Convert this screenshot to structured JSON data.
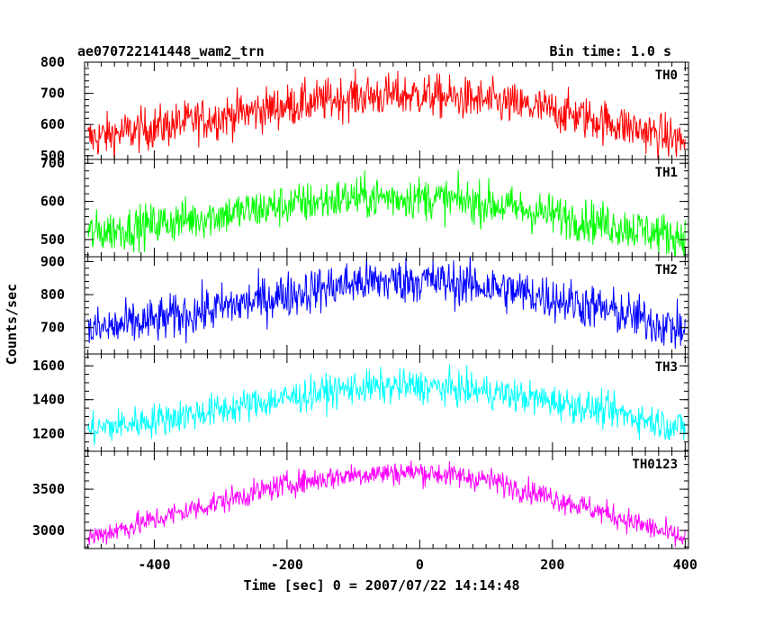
{
  "chart_data": {
    "type": "line",
    "title_left": "ae070722141448_wam2_trn",
    "title_right": "Bin time: 1.0 s",
    "xlabel": "Time [sec] 0 = 2007/07/22 14:14:48",
    "ylabel": "Counts/sec",
    "xlim": [
      -505,
      405
    ],
    "x_ticks": [
      "-400",
      "-200",
      "0",
      "200",
      "400"
    ],
    "x_tick_values": [
      -400,
      -200,
      0,
      200,
      400
    ],
    "bin_time_s": 1.0,
    "panels": [
      {
        "name": "TH0",
        "color": "#ff0000",
        "ylim": [
          488,
          800
        ],
        "y_ticks": [
          "500",
          "600",
          "700",
          "800"
        ],
        "y_tick_values": [
          500,
          600,
          700,
          800
        ],
        "trend_x": [
          -500,
          -400,
          -300,
          -200,
          -100,
          0,
          100,
          200,
          300,
          400
        ],
        "trend_y": [
          555,
          590,
          625,
          660,
          690,
          695,
          675,
          645,
          600,
          545
        ],
        "noise": 35
      },
      {
        "name": "TH1",
        "color": "#00ff00",
        "ylim": [
          455,
          710
        ],
        "y_ticks": [
          "500",
          "600",
          "700"
        ],
        "y_tick_values": [
          500,
          600,
          700
        ],
        "trend_x": [
          -500,
          -400,
          -300,
          -200,
          -100,
          0,
          100,
          200,
          300,
          400
        ],
        "trend_y": [
          515,
          540,
          565,
          590,
          610,
          610,
          595,
          565,
          535,
          505
        ],
        "noise": 28
      },
      {
        "name": "TH2",
        "color": "#0000ff",
        "ylim": [
          620,
          915
        ],
        "y_ticks": [
          "700",
          "800",
          "900"
        ],
        "y_tick_values": [
          700,
          800,
          900
        ],
        "trend_x": [
          -500,
          -400,
          -300,
          -200,
          -100,
          0,
          100,
          200,
          300,
          400
        ],
        "trend_y": [
          690,
          720,
          760,
          800,
          835,
          845,
          825,
          790,
          745,
          690
        ],
        "noise": 35
      },
      {
        "name": "TH3",
        "color": "#00ffff",
        "ylim": [
          1095,
          1670
        ],
        "y_ticks": [
          "1200",
          "1400",
          "1600"
        ],
        "y_tick_values": [
          1200,
          1400,
          1600
        ],
        "trend_x": [
          -500,
          -400,
          -300,
          -200,
          -100,
          0,
          100,
          200,
          300,
          400
        ],
        "trend_y": [
          1220,
          1280,
          1340,
          1410,
          1470,
          1480,
          1450,
          1390,
          1320,
          1230
        ],
        "noise": 50
      },
      {
        "name": "TH0123",
        "color": "#ff00ff",
        "ylim": [
          2780,
          3960
        ],
        "y_ticks": [
          "3000",
          "3500"
        ],
        "y_tick_values": [
          3000,
          3500
        ],
        "trend_x": [
          -500,
          -400,
          -300,
          -200,
          -100,
          0,
          100,
          200,
          300,
          400
        ],
        "trend_y": [
          2910,
          3130,
          3350,
          3560,
          3680,
          3710,
          3620,
          3400,
          3160,
          2890
        ],
        "noise": 75
      }
    ]
  }
}
